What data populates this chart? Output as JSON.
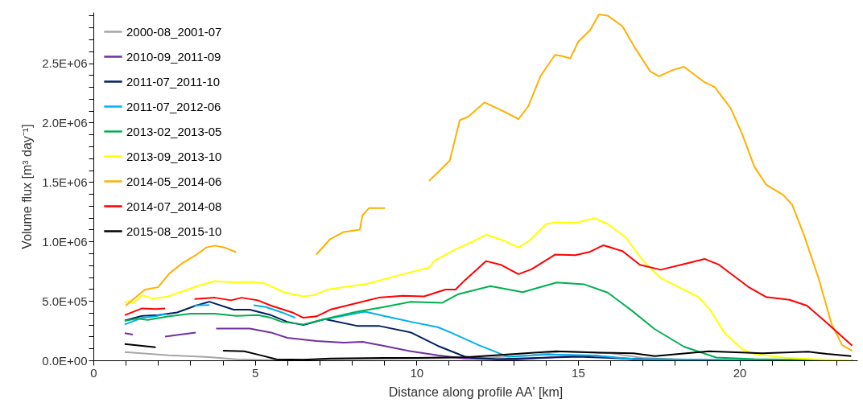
{
  "chart_data": {
    "type": "line",
    "xlabel": "Distance along profile AA' [km]",
    "ylabel": "Volume flux [m³ day⁻¹]",
    "xlim": [
      0,
      23.65
    ],
    "ylim": [
      0,
      2930000
    ],
    "xticks": [
      0,
      {
        "value": 1,
        "label": null
      },
      {
        "value": 2,
        "label": null
      },
      {
        "value": 3,
        "label": null
      },
      {
        "value": 4,
        "label": null
      },
      5,
      {
        "value": 6,
        "label": null
      },
      {
        "value": 7,
        "label": null
      },
      {
        "value": 8,
        "label": null
      },
      {
        "value": 9,
        "label": null
      },
      10,
      {
        "value": 11,
        "label": null
      },
      {
        "value": 12,
        "label": null
      },
      {
        "value": 13,
        "label": null
      },
      {
        "value": 14,
        "label": null
      },
      15,
      {
        "value": 16,
        "label": null
      },
      {
        "value": 17,
        "label": null
      },
      {
        "value": 18,
        "label": null
      },
      {
        "value": 19,
        "label": null
      },
      20,
      {
        "value": 21,
        "label": null
      },
      {
        "value": 22,
        "label": null
      },
      {
        "value": 23,
        "label": null
      }
    ],
    "yticks": [
      {
        "value": 0,
        "label": "0.0E+00"
      },
      {
        "value": 100000,
        "label": null
      },
      {
        "value": 200000,
        "label": null
      },
      {
        "value": 300000,
        "label": null
      },
      {
        "value": 400000,
        "label": null
      },
      {
        "value": 500000,
        "label": "5.0E+05"
      },
      {
        "value": 600000,
        "label": null
      },
      {
        "value": 700000,
        "label": null
      },
      {
        "value": 800000,
        "label": null
      },
      {
        "value": 900000,
        "label": null
      },
      {
        "value": 1000000,
        "label": "1.0E+06"
      },
      {
        "value": 1100000,
        "label": null
      },
      {
        "value": 1200000,
        "label": null
      },
      {
        "value": 1300000,
        "label": null
      },
      {
        "value": 1400000,
        "label": null
      },
      {
        "value": 1500000,
        "label": "1.5E+06"
      },
      {
        "value": 1600000,
        "label": null
      },
      {
        "value": 1700000,
        "label": null
      },
      {
        "value": 1800000,
        "label": null
      },
      {
        "value": 1900000,
        "label": null
      },
      {
        "value": 2000000,
        "label": "2.0E+06"
      },
      {
        "value": 2100000,
        "label": null
      },
      {
        "value": 2200000,
        "label": null
      },
      {
        "value": 2300000,
        "label": null
      },
      {
        "value": 2400000,
        "label": null
      },
      {
        "value": 2500000,
        "label": "2.5E+06"
      },
      {
        "value": 2600000,
        "label": null
      },
      {
        "value": 2700000,
        "label": null
      },
      {
        "value": 2800000,
        "label": null
      },
      {
        "value": 2900000,
        "label": null
      }
    ],
    "grid": false,
    "legend": "top left",
    "marker": "none",
    "line_style": "solid",
    "series": [
      {
        "name": "2000-08_2001-07",
        "color": "#a6a6a6",
        "x": [
          0.97,
          2.34,
          3.59,
          4.42,
          5.67,
          8,
          10,
          12,
          13.5,
          14.5,
          16,
          17,
          19,
          21,
          23.5
        ],
        "values": [
          70000,
          43000,
          27000,
          9000,
          2000,
          10000,
          15000,
          20000,
          40000,
          75000,
          60000,
          20000,
          0,
          0,
          0
        ]
      },
      {
        "name": "2010-09_2011-09",
        "color": "#7030a0",
        "x": [
          0.97,
          1.22,
          1.7,
          2.22,
          2.68,
          3.17,
          3.5,
          3.8,
          4.84,
          5.5,
          6.0,
          6.91,
          7.75,
          8.33,
          8.99,
          9.83,
          10.66,
          11.49,
          13,
          14.5,
          15.5,
          17,
          20,
          23
        ],
        "values": [
          228000,
          216000,
          null,
          200000,
          216000,
          234000,
          null,
          268000,
          268000,
          234000,
          189000,
          162000,
          149000,
          155000,
          122000,
          76000,
          43000,
          16000,
          5000,
          30000,
          40000,
          0,
          0,
          0
        ]
      },
      {
        "name": "2011-07_2011-10",
        "color": "#002060",
        "x": [
          0.97,
          1.51,
          2.01,
          2.59,
          3.17,
          3.59,
          4.34,
          4.84,
          5.5,
          6.0,
          6.5,
          7.16,
          8.16,
          8.83,
          9.83,
          10.66,
          11.49,
          11.82,
          12.5,
          15,
          17,
          20,
          23.5
        ],
        "values": [
          336000,
          374000,
          380000,
          403000,
          460000,
          493000,
          426000,
          426000,
          380000,
          324000,
          297000,
          347000,
          290000,
          290000,
          234000,
          122000,
          32000,
          20000,
          10000,
          30000,
          10000,
          0,
          0
        ]
      },
      {
        "name": "2011-07_2012-06",
        "color": "#00b0f0",
        "x": [
          0.97,
          1.51,
          1.93,
          2.26,
          2.7,
          3.09,
          3.59,
          4.3,
          4.96,
          5.34,
          5.84,
          6.25,
          6.6,
          7.0,
          8.41,
          8.99,
          9.83,
          10.66,
          11.02,
          11.93,
          12.84,
          14.11,
          15.38,
          16.83,
          18.64,
          22.27
        ],
        "values": [
          302000,
          358000,
          370000,
          392000,
          null,
          460000,
          466000,
          null,
          464000,
          448000,
          403000,
          358000,
          null,
          336000,
          410000,
          374000,
          324000,
          279000,
          239000,
          128000,
          30000,
          49000,
          42000,
          10000,
          5000,
          0
        ]
      },
      {
        "name": "2013-02_2013-05",
        "color": "#00b050",
        "x": [
          0.97,
          1.35,
          1.68,
          2.34,
          3.01,
          3.76,
          4.42,
          5.09,
          5.5,
          5.83,
          6.5,
          7.16,
          8.16,
          8.99,
          9.83,
          10.8,
          11.3,
          12.29,
          13.29,
          14.34,
          15.2,
          15.92,
          16.65,
          17.37,
          18.28,
          19.28,
          20.46,
          22.99
        ],
        "values": [
          331000,
          351000,
          340000,
          370000,
          392000,
          392000,
          374000,
          380000,
          358000,
          324000,
          302000,
          347000,
          410000,
          448000,
          493000,
          484000,
          557000,
          624000,
          574000,
          655000,
          639000,
          570000,
          422000,
          264000,
          115000,
          24000,
          10000,
          0
        ]
      },
      {
        "name": "2013-09_2013-10",
        "color": "#ffff00",
        "x": [
          0.97,
          1.1,
          1.22,
          1.51,
          1.85,
          2.26,
          2.92,
          3.26,
          3.76,
          4.42,
          4.92,
          5.34,
          5.91,
          6.5,
          6.83,
          7.25,
          8.49,
          9.49,
          10.39,
          10.57,
          11.25,
          11.75,
          12.16,
          12.66,
          13.16,
          13.47,
          14.02,
          14.29,
          14.92,
          15.51,
          15.92,
          16.47,
          17.01,
          17.56,
          18.1,
          18.73,
          19.1,
          19.55,
          20.1,
          20.46,
          21.36,
          22.27,
          23.49
        ],
        "values": [
          486000,
          500000,
          480000,
          547000,
          520000,
          534000,
          595000,
          628000,
          667000,
          655000,
          660000,
          644000,
          572000,
          538000,
          549000,
          595000,
          644000,
          718000,
          780000,
          840000,
          940000,
          1000000,
          1057000,
          1012000,
          950000,
          1000000,
          1147000,
          1160000,
          1155000,
          1196000,
          1147000,
          1037000,
          840000,
          693000,
          619000,
          533000,
          422000,
          226000,
          91000,
          54000,
          24000,
          10000,
          0
        ]
      },
      {
        "name": "2014-05_2014-06",
        "color": "#ffb000",
        "x": [
          1.0,
          1.6,
          2.0,
          2.35,
          2.77,
          3.17,
          3.5,
          3.77,
          4.1,
          4.42,
          5.5,
          6.9,
          7.33,
          7.75,
          8.25,
          8.33,
          8.53,
          9.03,
          9.7,
          10.39,
          10.66,
          11.03,
          11.16,
          11.34,
          11.61,
          12.11,
          12.66,
          13.16,
          13.47,
          13.84,
          14.29,
          14.51,
          14.76,
          15.01,
          15.38,
          15.65,
          15.92,
          16.38,
          16.74,
          17.24,
          17.51,
          17.92,
          18.28,
          18.92,
          19.23,
          19.73,
          20.09,
          20.46,
          20.82,
          21.36,
          21.63,
          21.99,
          22.45,
          22.86,
          23.18,
          23.49
        ],
        "values": [
          460000,
          595000,
          615000,
          730000,
          820000,
          885000,
          950000,
          965000,
          945000,
          910000,
          null,
          890000,
          1020000,
          1080000,
          1100000,
          1220000,
          1280000,
          1280000,
          null,
          1510000,
          1580000,
          1680000,
          1820000,
          2020000,
          2050000,
          2170000,
          2100000,
          2030000,
          2140000,
          2390000,
          2570000,
          2560000,
          2540000,
          2680000,
          2780000,
          2910000,
          2900000,
          2810000,
          2640000,
          2430000,
          2390000,
          2440000,
          2470000,
          2340000,
          2300000,
          2120000,
          1900000,
          1630000,
          1480000,
          1390000,
          1310000,
          1060000,
          690000,
          300000,
          128000,
          81000
        ]
      },
      {
        "name": "2014-07_2014-08",
        "color": "#ff0000",
        "x": [
          0.97,
          1.51,
          1.93,
          2.22,
          2.7,
          3.13,
          3.76,
          4.26,
          4.59,
          5.09,
          5.5,
          6.16,
          6.5,
          6.91,
          7.33,
          8.16,
          8.83,
          9.58,
          10.24,
          10.9,
          11.21,
          11.48,
          12.16,
          12.61,
          13.16,
          13.57,
          14.29,
          14.92,
          15.38,
          15.79,
          16.38,
          16.92,
          17.56,
          18.19,
          18.92,
          19.37,
          20.27,
          20.82,
          21.55,
          22.09,
          22.72,
          23.49
        ],
        "values": [
          380000,
          437000,
          432000,
          437000,
          null,
          516000,
          527000,
          505000,
          527000,
          505000,
          460000,
          403000,
          358000,
          370000,
          426000,
          482000,
          527000,
          543000,
          538000,
          595000,
          595000,
          669000,
          835000,
          804000,
          725000,
          767000,
          889000,
          885000,
          914000,
          968000,
          919000,
          804000,
          762000,
          804000,
          853000,
          804000,
          619000,
          533000,
          509000,
          460000,
          312000,
          123000
        ]
      },
      {
        "name": "2015-08_2015-10",
        "color": "#000000",
        "x": [
          0.97,
          1.93,
          3.0,
          4.01,
          4.67,
          5.17,
          5.67,
          6.5,
          7.33,
          9,
          10,
          11.57,
          14.31,
          15.73,
          16.72,
          17.38,
          19.05,
          20.71,
          22.13,
          22.71,
          23.46
        ],
        "values": [
          137000,
          110000,
          null,
          81000,
          76000,
          43000,
          9000,
          5000,
          16000,
          20000,
          20000,
          27000,
          76000,
          65000,
          59000,
          36000,
          76000,
          59000,
          72000,
          54000,
          36000
        ]
      }
    ]
  }
}
